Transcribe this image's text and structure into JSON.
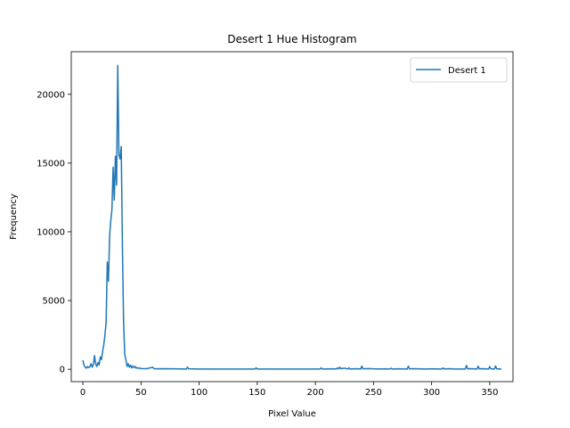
{
  "chart_data": {
    "type": "line",
    "title": "Desert 1 Hue Histogram",
    "xlabel": "Pixel Value",
    "ylabel": "Frequency",
    "xlim": [
      -10,
      370
    ],
    "ylim": [
      -900,
      23100
    ],
    "xticks": [
      0,
      50,
      100,
      150,
      200,
      250,
      300,
      350
    ],
    "yticks": [
      0,
      5000,
      10000,
      15000,
      20000
    ],
    "grid": false,
    "legend_position": "top-right",
    "series": [
      {
        "name": "Desert 1",
        "color": "#1f77b4",
        "x": [
          0,
          1,
          2,
          3,
          4,
          5,
          6,
          7,
          8,
          9,
          10,
          11,
          12,
          13,
          14,
          15,
          16,
          17,
          18,
          19,
          20,
          21,
          22,
          23,
          24,
          25,
          26,
          27,
          28,
          29,
          30,
          31,
          32,
          33,
          34,
          35,
          36,
          37,
          38,
          39,
          40,
          41,
          42,
          43,
          44,
          45,
          46,
          47,
          48,
          49,
          50,
          55,
          60,
          61,
          62,
          70,
          80,
          89,
          90,
          91,
          100,
          120,
          148,
          149,
          150,
          180,
          204,
          205,
          206,
          215,
          218,
          219,
          220,
          221,
          222,
          225,
          228,
          229,
          230,
          235,
          239,
          240,
          241,
          245,
          255,
          260,
          264,
          265,
          266,
          270,
          279,
          280,
          281,
          285,
          295,
          300,
          309,
          310,
          311,
          315,
          320,
          329,
          330,
          331,
          335,
          339,
          340,
          341,
          345,
          349,
          350,
          351,
          354,
          355,
          356,
          360
        ],
        "y": [
          650,
          300,
          150,
          80,
          200,
          120,
          180,
          400,
          150,
          350,
          1000,
          400,
          200,
          500,
          300,
          900,
          700,
          1300,
          1800,
          2500,
          3400,
          7800,
          6400,
          9700,
          10800,
          11600,
          14700,
          12300,
          15500,
          13400,
          22100,
          15600,
          15300,
          16200,
          9000,
          3500,
          1100,
          700,
          200,
          400,
          150,
          300,
          100,
          250,
          120,
          200,
          80,
          120,
          60,
          90,
          50,
          40,
          150,
          60,
          30,
          40,
          30,
          20,
          150,
          30,
          20,
          20,
          20,
          100,
          20,
          20,
          20,
          100,
          20,
          30,
          20,
          100,
          30,
          150,
          40,
          80,
          20,
          100,
          20,
          40,
          20,
          230,
          30,
          50,
          20,
          30,
          20,
          80,
          20,
          30,
          20,
          220,
          30,
          40,
          20,
          30,
          20,
          100,
          20,
          40,
          20,
          20,
          280,
          30,
          40,
          20,
          220,
          30,
          40,
          20,
          200,
          30,
          20,
          230,
          30,
          20
        ]
      }
    ]
  }
}
